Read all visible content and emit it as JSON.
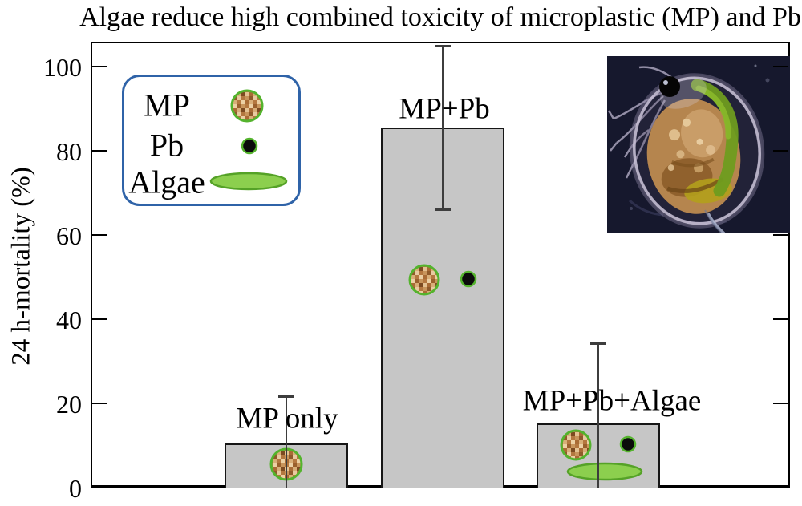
{
  "chart_data": {
    "type": "bar",
    "title": "Algae reduce high combined toxicity of microplastic (MP) and Pb",
    "ylabel": "24 h-mortality (%)",
    "xlabel": "",
    "categories": [
      "MP only",
      "MP+Pb",
      "MP+Pb+Algae"
    ],
    "values": [
      10.5,
      85.5,
      15.2
    ],
    "errors": [
      11.2,
      19.5,
      19.0
    ],
    "yticks": [
      0,
      20,
      40,
      60,
      80,
      100
    ],
    "ylim": [
      0,
      106
    ],
    "grid": false,
    "legend_position": "upper-left",
    "bar_color": "#c6c6c6",
    "bar_border_color": "#161616",
    "error_color": "#3d3d3d",
    "annotations": [
      {
        "bar": "MP only",
        "icons": [
          "mp-particle"
        ]
      },
      {
        "bar": "MP+Pb",
        "icons": [
          "mp-particle",
          "pb-dot"
        ]
      },
      {
        "bar": "MP+Pb+Algae",
        "icons": [
          "mp-particle",
          "pb-dot",
          "algae"
        ]
      }
    ]
  },
  "legend": {
    "border_color": "#2f63a8",
    "items": [
      {
        "label": "MP",
        "icon": "mp-particle-icon"
      },
      {
        "label": "Pb",
        "icon": "pb-dot-icon"
      },
      {
        "label": "Algae",
        "icon": "algae-icon"
      }
    ]
  },
  "inset": {
    "name": "daphnia-micrograph"
  },
  "colors": {
    "mp_ring": "#54b32d",
    "pb_ring": "#54b32d",
    "pb_core": "#0b0b0b",
    "algae_fill": "#8ccf4e",
    "algae_stroke": "#55a227"
  }
}
